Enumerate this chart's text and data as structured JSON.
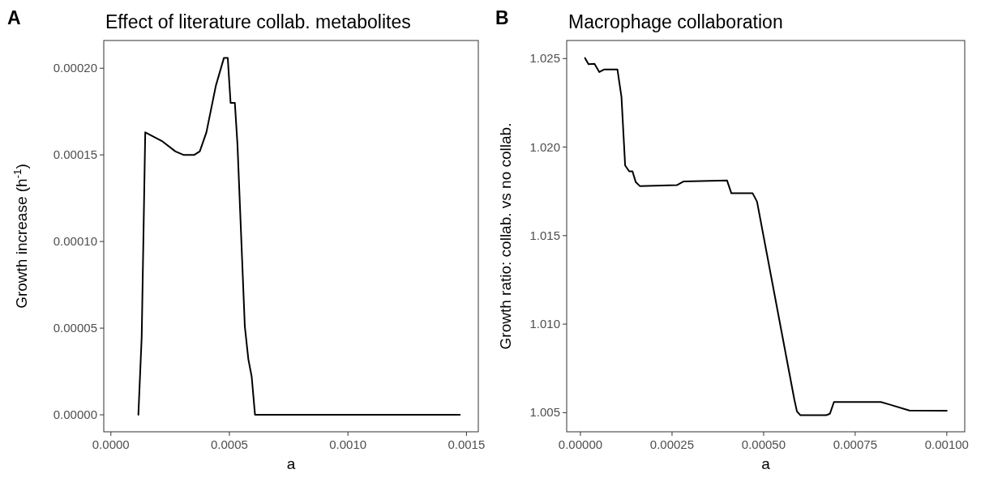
{
  "chart_data": [
    {
      "type": "line",
      "title": "Effect of literature collab. metabolites",
      "xlabel": "a",
      "ylabel": "Growth increase (h$^{-1}$)",
      "annotations": [
        "A"
      ],
      "xlim": [
        -3e-05,
        0.00155
      ],
      "ylim": [
        -9.8e-06,
        0.000216
      ],
      "xticks": [
        {
          "value": 0,
          "label": "0.0000"
        },
        {
          "value": 0.0005,
          "label": "0.0005"
        },
        {
          "value": 0.001,
          "label": "0.0010"
        },
        {
          "value": 0.0015,
          "label": "0.0015"
        }
      ],
      "yticks": [
        {
          "value": 0,
          "label": "0.00000"
        },
        {
          "value": 5e-05,
          "label": "0.00005"
        },
        {
          "value": 0.0001,
          "label": "0.00010"
        },
        {
          "value": 0.00015,
          "label": "0.00015"
        },
        {
          "value": 0.0002,
          "label": "0.00020"
        }
      ],
      "series": [
        {
          "color": "#000000",
          "x": [
            0.000116,
            0.00013,
            0.000145,
            0.000215,
            0.000272,
            0.000306,
            0.000352,
            0.000375,
            0.000403,
            0.000443,
            0.000477,
            0.000493,
            0.000505,
            0.000523,
            0.000534,
            0.000565,
            0.00058,
            0.000594,
            0.000608,
            0.001472
          ],
          "values": [
            0,
            4.5e-05,
            0.000163,
            0.000158,
            0.000152,
            0.00015,
            0.00015,
            0.000152,
            0.000163,
            0.00019,
            0.000206,
            0.000206,
            0.00018,
            0.00018,
            0.000156,
            5.1e-05,
            3.2e-05,
            2.2e-05,
            0,
            0
          ]
        }
      ]
    },
    {
      "type": "line",
      "title": "Macrophage collaboration",
      "xlabel": "a",
      "ylabel": "Growth ratio: collab. vs no collab.",
      "annotations": [
        "B"
      ],
      "xlim": [
        -3.76e-05,
        0.001049
      ],
      "ylim": [
        1.00392,
        1.02602
      ],
      "xticks": [
        {
          "value": 0,
          "label": "0.00000"
        },
        {
          "value": 0.00025,
          "label": "0.00025"
        },
        {
          "value": 0.0005,
          "label": "0.00050"
        },
        {
          "value": 0.00075,
          "label": "0.00075"
        },
        {
          "value": 0.001,
          "label": "0.00100"
        }
      ],
      "yticks": [
        1.005,
        {
          "value": 1.01,
          "label": "1.010"
        },
        1.015,
        {
          "value": 1.02,
          "label": "1.020"
        },
        1.025
      ],
      "series": [
        {
          "color": "#000000",
          "x": [
            1.25e-05,
            2.21e-05,
            3.83e-05,
            5.16e-05,
            6.42e-05,
            0.000101,
            0.000112,
            0.000122,
            0.000133,
            0.000142,
            0.000151,
            0.000162,
            0.000263,
            0.000282,
            0.0004,
            0.000412,
            0.00047,
            0.000482,
            0.000584,
            0.000591,
            0.0006,
            0.000671,
            0.000681,
            0.000692,
            0.00082,
            0.000842,
            0.000898,
            0.001
          ],
          "values": [
            1.02503,
            1.02468,
            1.0247,
            1.02424,
            1.02438,
            1.02438,
            1.02282,
            1.01896,
            1.01863,
            1.01863,
            1.01802,
            1.0178,
            1.01785,
            1.01806,
            1.01812,
            1.01739,
            1.01739,
            1.01692,
            1.00573,
            1.00507,
            1.00486,
            1.00486,
            1.00494,
            1.0056,
            1.0056,
            1.00547,
            1.00512,
            1.00511
          ]
        }
      ]
    }
  ]
}
